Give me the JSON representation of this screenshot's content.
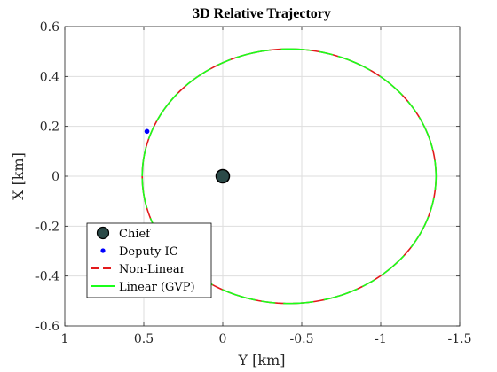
{
  "chart_data": {
    "type": "line",
    "title": "3D Relative Trajectory",
    "xlabel": "Y [km]",
    "ylabel": "X [km]",
    "xlim": [
      1,
      -1.5
    ],
    "ylim": [
      -0.6,
      0.6
    ],
    "x_reversed": true,
    "grid": true,
    "legend_placement": "bottom-left",
    "xticks": [
      1,
      0.5,
      0,
      -0.5,
      -1,
      -1.5
    ],
    "xtick_labels": [
      "1",
      "0.5",
      "0",
      "-0.5",
      "-1",
      "-1.5"
    ],
    "yticks": [
      0.6,
      0.4,
      0.2,
      0,
      -0.2,
      -0.4,
      -0.6
    ],
    "ytick_labels": [
      "0.6",
      "0.4",
      "0.2",
      "0",
      "-0.2",
      "-0.4",
      "-0.6"
    ],
    "series": [
      {
        "name": "Chief",
        "kind": "marker",
        "color": "#2b4a48",
        "points": [
          {
            "y": 0,
            "x": 0
          }
        ]
      },
      {
        "name": "Deputy IC",
        "kind": "point",
        "color": "#0000ff",
        "points": [
          {
            "y": 0.48,
            "x": 0.18
          }
        ]
      },
      {
        "name": "Non-Linear",
        "kind": "dashed-line",
        "color": "#e31a1c",
        "ellipse": {
          "center_y": -0.42,
          "center_x": 0,
          "semi_axis_y": 0.93,
          "semi_axis_x": 0.51
        }
      },
      {
        "name": "Linear (GVP)",
        "kind": "line",
        "color": "#1aff1a",
        "ellipse": {
          "center_y": -0.42,
          "center_x": 0,
          "semi_axis_y": 0.93,
          "semi_axis_x": 0.51
        }
      }
    ]
  }
}
